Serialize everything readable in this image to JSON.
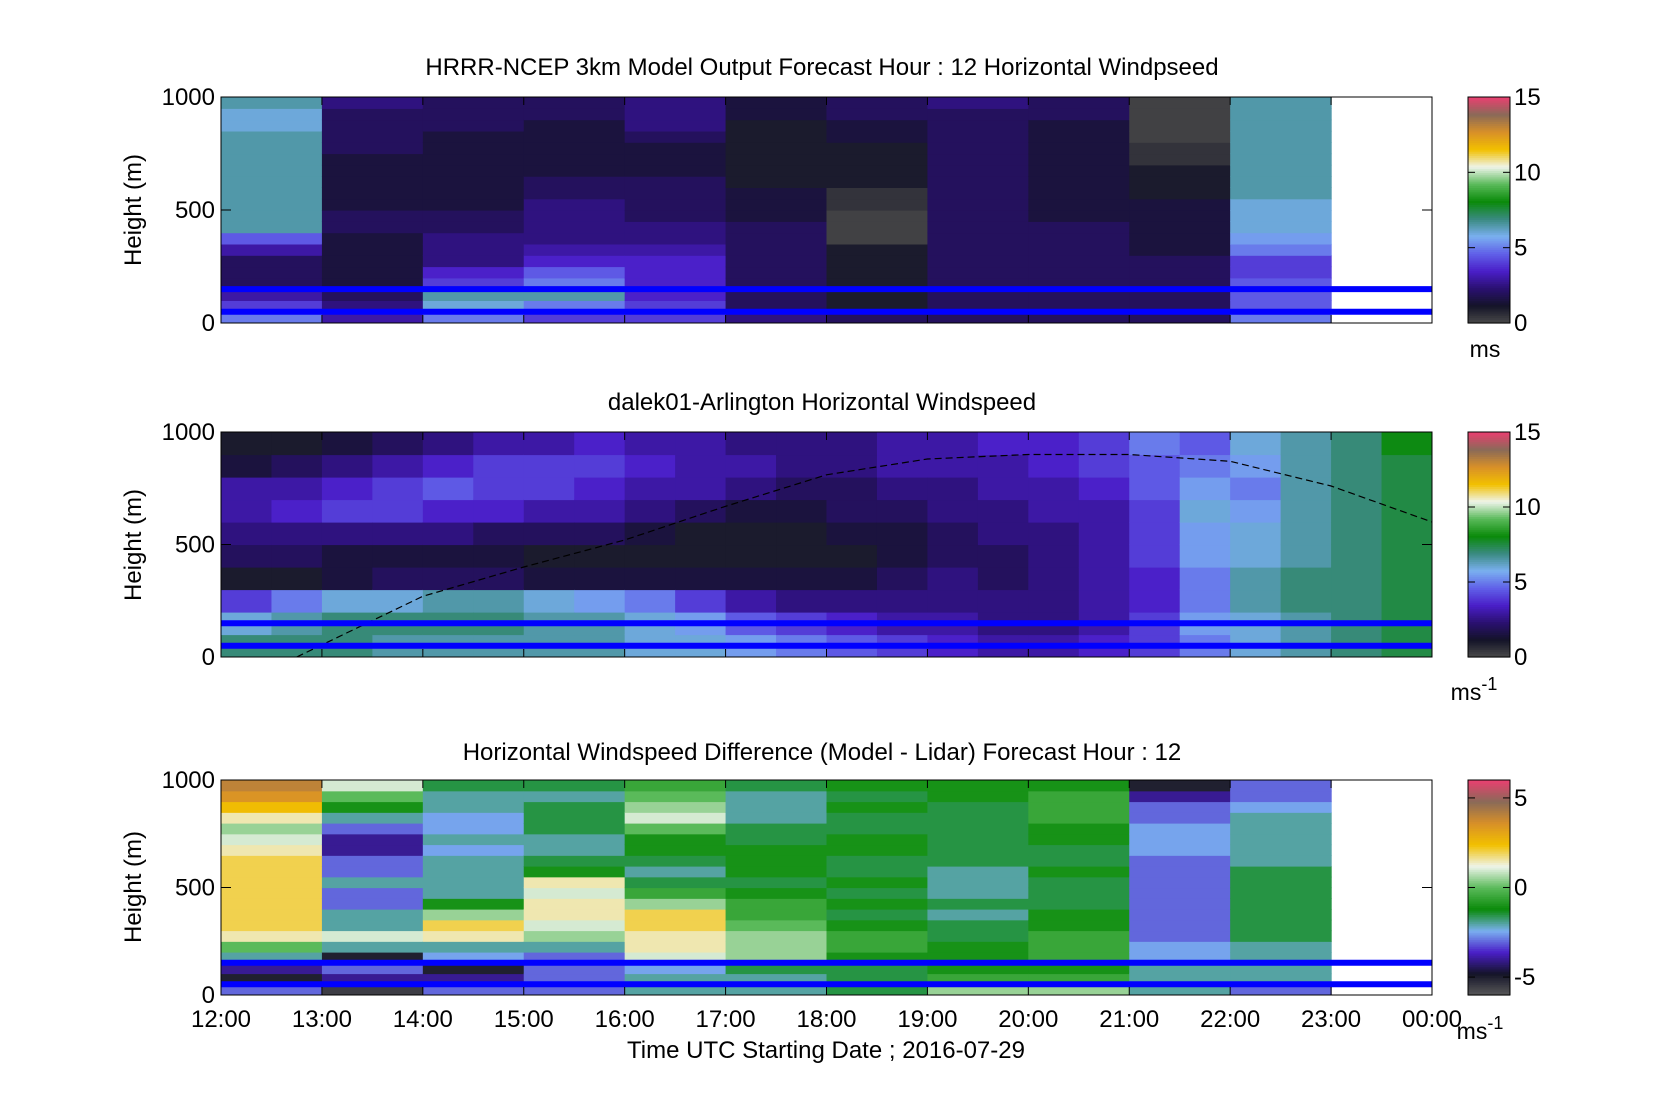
{
  "colors": {
    "speed_scale": [
      "#4a4a4a",
      "#141428",
      "#2a1070",
      "#4a1ec8",
      "#6060e8",
      "#7ab0f0",
      "#3a8a80",
      "#0a8a0a",
      "#5aba5a",
      "#eef4ea",
      "#f2c000",
      "#d89028",
      "#8a6a58",
      "#e84070"
    ],
    "diff_scale": [
      "#5a5a5a",
      "#141428",
      "#4a1ec8",
      "#7ab0f0",
      "#0a8a0a",
      "#5aba5a",
      "#eef4ea",
      "#f2c000",
      "#d89028",
      "#8a6a58",
      "#e84070"
    ],
    "reference_line": "#0000ff",
    "nodata": "#ffffff"
  },
  "chart_data": [
    {
      "type": "heatmap",
      "title": "HRRR-NCEP 3km Model Output   Forecast Hour : 12 Horizontal Windpseed",
      "xlabel": "",
      "ylabel": "Height (m)",
      "ylim": [
        0,
        1000
      ],
      "yticks": [
        "0",
        "500",
        "1000"
      ],
      "x_range_hours": [
        12,
        24
      ],
      "colorbar": {
        "range": [
          0,
          15
        ],
        "ticks": [
          "0",
          "5",
          "10",
          "15"
        ],
        "unit": "ms"
      },
      "reference_heights": [
        50,
        150
      ],
      "hours": [
        12,
        13,
        14,
        15,
        16,
        17,
        18,
        19,
        20,
        21,
        22
      ],
      "levels": [
        0,
        50,
        100,
        150,
        200,
        250,
        300,
        350,
        400,
        450,
        500,
        550,
        600,
        650,
        700,
        750,
        800,
        850,
        900,
        950
      ],
      "values": [
        [
          5,
          4,
          3,
          2,
          2,
          2,
          3,
          4.5,
          6.5,
          6.5,
          6.5,
          6.5,
          6.5,
          6.5,
          6.5,
          6.5,
          6.5,
          6,
          6,
          6.5
        ],
        [
          3,
          2.5,
          2,
          1.5,
          1.5,
          1.5,
          1.5,
          1.5,
          2,
          2,
          1.5,
          1.5,
          1.5,
          1.5,
          1.5,
          2,
          2,
          2,
          2,
          2.5
        ],
        [
          5,
          6,
          6.5,
          4,
          3.5,
          2.5,
          2.5,
          2.5,
          2,
          2,
          1.5,
          1.5,
          1.5,
          1.5,
          1.5,
          1.5,
          1.5,
          2,
          2,
          2
        ],
        [
          4,
          5,
          6.5,
          5,
          4.5,
          3.5,
          3,
          2.5,
          2.5,
          2.5,
          2.5,
          2,
          2,
          1.5,
          1.5,
          1.5,
          1.5,
          1.5,
          2,
          2
        ],
        [
          4,
          4,
          3.5,
          3.5,
          3.5,
          3.5,
          3,
          2.5,
          2.5,
          2,
          2,
          2,
          2,
          1.5,
          1.5,
          1.5,
          2,
          2.5,
          2.5,
          2.5
        ],
        [
          2.5,
          2,
          2,
          2,
          2,
          2,
          2,
          2,
          2,
          1.5,
          1.5,
          1.5,
          1,
          1,
          1,
          1,
          1,
          1,
          1.5,
          1.5
        ],
        [
          2,
          1,
          1,
          1,
          1,
          1,
          1,
          0.2,
          0.2,
          0.2,
          0.5,
          0.5,
          1,
          1,
          1,
          1,
          1.5,
          1.5,
          2,
          2
        ],
        [
          2,
          2,
          2,
          2,
          2,
          2,
          2,
          2,
          2,
          2,
          2,
          2,
          2,
          2,
          2,
          2,
          2,
          2,
          2,
          2.5
        ],
        [
          2,
          2,
          2,
          2,
          2,
          2,
          2,
          2,
          2,
          1.5,
          1.5,
          1.5,
          1.5,
          1.5,
          1.5,
          1.5,
          1.5,
          1.5,
          2,
          2
        ],
        [
          2,
          2,
          2,
          2,
          2,
          2,
          1.5,
          1.5,
          1.5,
          1.5,
          1.5,
          1,
          1,
          1,
          0.5,
          0.5,
          0.2,
          0.2,
          0.2,
          0.2
        ],
        [
          5,
          4.5,
          4.5,
          4.5,
          4,
          4,
          5,
          5.5,
          6,
          6,
          6,
          6.5,
          6.5,
          6.5,
          6.5,
          6.5,
          6.5,
          6.5,
          6.5,
          6.5
        ]
      ]
    },
    {
      "type": "heatmap",
      "title": "dalek01-Arlington  Horizontal Windspeed",
      "xlabel": "",
      "ylabel": "Height (m)",
      "ylim": [
        0,
        1000
      ],
      "yticks": [
        "0",
        "500",
        "1000"
      ],
      "x_range_hours": [
        12,
        24
      ],
      "colorbar": {
        "range": [
          0,
          15
        ],
        "ticks": [
          "0",
          "5",
          "10",
          "15"
        ],
        "unit": "ms",
        "unit_exp": "-1"
      },
      "reference_heights": [
        50,
        150
      ],
      "boundary_curve": {
        "hours": [
          12.75,
          14,
          15,
          16,
          17,
          18,
          19,
          20,
          21,
          22,
          23,
          24
        ],
        "heights": [
          0,
          270,
          400,
          520,
          670,
          810,
          880,
          900,
          900,
          870,
          760,
          600
        ]
      },
      "hours": [
        12,
        12.5,
        13,
        13.5,
        14,
        14.5,
        15,
        15.5,
        16,
        16.5,
        17,
        17.5,
        18,
        18.5,
        19,
        19.5,
        20,
        20.5,
        21,
        21.5,
        22,
        22.5,
        23,
        23.5
      ],
      "levels": [
        0,
        100,
        200,
        300,
        400,
        500,
        600,
        700,
        800,
        900
      ],
      "values": [
        [
          7,
          6,
          4,
          1,
          2,
          2.5,
          3,
          3,
          1.5,
          1
        ],
        [
          7,
          6.5,
          5,
          1,
          2,
          2.5,
          3.5,
          3,
          2,
          1
        ],
        [
          7,
          7,
          6,
          1.5,
          1.5,
          2.5,
          4,
          3.5,
          2.5,
          1.5
        ],
        [
          6.5,
          7,
          6,
          2,
          1.5,
          2.5,
          4,
          4,
          3,
          2
        ],
        [
          6.5,
          7,
          6.5,
          2,
          1.5,
          2.5,
          3.5,
          4.5,
          3.5,
          2.5
        ],
        [
          6.5,
          7,
          6.5,
          2,
          1.5,
          2,
          3.5,
          4,
          4,
          3
        ],
        [
          6.5,
          6.5,
          6,
          1.5,
          1,
          2,
          3,
          4,
          4,
          3
        ],
        [
          6.5,
          6.5,
          5.5,
          1.5,
          1,
          2,
          3,
          3.5,
          4,
          3.5
        ],
        [
          6,
          6,
          5,
          1.5,
          1,
          1.5,
          2.5,
          3,
          3.5,
          3
        ],
        [
          6,
          5.5,
          4,
          1.5,
          1,
          1,
          2,
          3,
          3,
          3
        ],
        [
          5.5,
          4.5,
          3,
          1.5,
          1,
          1,
          1.5,
          2.5,
          3,
          2.5
        ],
        [
          5,
          4,
          2.5,
          1.5,
          1,
          1,
          1.5,
          2,
          2.5,
          2.5
        ],
        [
          4.5,
          3.5,
          2.5,
          1.5,
          1,
          1.5,
          2,
          2,
          2.5,
          2.5
        ],
        [
          4,
          3,
          2.5,
          2,
          1.5,
          1.5,
          2,
          2.5,
          3,
          3
        ],
        [
          3.5,
          3,
          2.5,
          2.5,
          2,
          2,
          2.5,
          2.5,
          3,
          3
        ],
        [
          3,
          2.5,
          2.5,
          2,
          2,
          2.5,
          2.5,
          3,
          3,
          3.5
        ],
        [
          3,
          2.5,
          2.5,
          2.5,
          2.5,
          2.5,
          3,
          3,
          3.5,
          3.5
        ],
        [
          3.5,
          3,
          3,
          3,
          3,
          3,
          3,
          3.5,
          4,
          4
        ],
        [
          4,
          4,
          3.5,
          3.5,
          4,
          4,
          4,
          4.5,
          4.5,
          5
        ],
        [
          5,
          5.5,
          5,
          5,
          5.5,
          5.5,
          6,
          5.5,
          5,
          4.5
        ],
        [
          6,
          6,
          6.5,
          6.5,
          6,
          6,
          5.5,
          5,
          5.5,
          6
        ],
        [
          6.5,
          6.5,
          7,
          7,
          6.5,
          6.5,
          6.5,
          6.5,
          6.5,
          6.5
        ],
        [
          7,
          7,
          7,
          7,
          7,
          7,
          7,
          7,
          7,
          7
        ],
        [
          7.5,
          7.5,
          7.5,
          7.5,
          7.5,
          7.5,
          7.5,
          7.5,
          7.5,
          8
        ]
      ]
    },
    {
      "type": "heatmap",
      "title": "Horizontal Windspeed Difference (Model - Lidar) Forecast Hour : 12",
      "xlabel": "Time UTC  Starting Date ; 2016-07-29",
      "ylabel": "Height (m)",
      "ylim": [
        0,
        1000
      ],
      "yticks": [
        "0",
        "500",
        "1000"
      ],
      "x_range_hours": [
        12,
        24
      ],
      "xticks": [
        "12:00",
        "13:00",
        "14:00",
        "15:00",
        "16:00",
        "17:00",
        "18:00",
        "19:00",
        "20:00",
        "21:00",
        "22:00",
        "23:00",
        "00:00"
      ],
      "colorbar": {
        "range": [
          -6,
          6
        ],
        "ticks": [
          "-5",
          "0",
          "5"
        ],
        "unit": "ms",
        "unit_exp": "-1"
      },
      "reference_heights": [
        50,
        150
      ],
      "hours": [
        12,
        13,
        14,
        15,
        16,
        17,
        18,
        19,
        20,
        21,
        22
      ],
      "levels": [
        0,
        50,
        100,
        150,
        200,
        250,
        300,
        350,
        400,
        450,
        500,
        550,
        600,
        650,
        700,
        750,
        800,
        850,
        900,
        950
      ],
      "values": [
        [
          -3,
          -5,
          -4,
          -2,
          0,
          1.5,
          2,
          2,
          2,
          2,
          2,
          2,
          2,
          1.5,
          1,
          0.5,
          1.5,
          2.5,
          3.5,
          4
        ],
        [
          -5.5,
          -4,
          -3,
          -5,
          -2,
          1,
          -2,
          -2,
          -3,
          -3,
          -2,
          -3,
          -3,
          -4,
          -4,
          -3,
          -2,
          -1,
          0,
          1
        ],
        [
          -3,
          -4,
          -5,
          -2.5,
          -2,
          1.5,
          2,
          0.5,
          -1,
          -2,
          -2,
          -2,
          -2,
          -2.5,
          -2,
          -2.5,
          -2.5,
          -2,
          -2,
          -1.5
        ],
        [
          -3,
          -3,
          -3,
          -3,
          -2,
          0.5,
          1,
          1.5,
          1.5,
          1,
          1.5,
          -1,
          -1.5,
          -2,
          -2,
          -1.5,
          -1.5,
          -1.5,
          -2,
          -1.5
        ],
        [
          -2,
          -2,
          -2.5,
          1,
          1.5,
          1.5,
          2,
          2,
          0.5,
          -0.5,
          -1.5,
          -2,
          -1.5,
          -1,
          -1,
          0,
          1,
          0.5,
          0,
          -0.5
        ],
        [
          -2,
          -2,
          -1.5,
          0.5,
          0.5,
          0.5,
          0,
          -0.5,
          -0.5,
          -1,
          -1.5,
          -1,
          -1,
          -1,
          -1.5,
          -1.5,
          -2,
          -2,
          -2,
          -1.5
        ],
        [
          -1.5,
          -1.5,
          -1.5,
          -1,
          -0.5,
          -0.5,
          -1,
          -1.5,
          -1,
          -1.5,
          -1,
          -1.5,
          -1.5,
          -1,
          -1,
          -1.5,
          -1.5,
          -1,
          -1.5,
          -1
        ],
        [
          0.5,
          -0.5,
          -1,
          -1,
          -1,
          -1.5,
          -1.5,
          -2,
          -1.5,
          -2,
          -2,
          -2,
          -1.5,
          -1.5,
          -1.5,
          -1.5,
          -1.5,
          -1.5,
          -1,
          -1
        ],
        [
          0.5,
          -0.5,
          -1,
          -0.5,
          -0.5,
          -0.5,
          -1,
          -1,
          -1.5,
          -1.5,
          -1.5,
          -1,
          -1.5,
          -1.5,
          -1,
          -1,
          -0.5,
          -0.5,
          -0.5,
          -1
        ],
        [
          -2,
          -2,
          -2,
          -2.5,
          -2.5,
          -3,
          -3,
          -3,
          -3,
          -3,
          -3,
          -3,
          -3,
          -2.5,
          -2.5,
          -2.5,
          -3,
          -3,
          -4,
          -5
        ],
        [
          -3,
          -2,
          -2,
          -2,
          -2,
          -1.5,
          -1.5,
          -1.5,
          -1.5,
          -1.5,
          -1.5,
          -1.5,
          -2,
          -2,
          -2,
          -2,
          -2,
          -2.5,
          -3,
          -3
        ]
      ]
    }
  ]
}
